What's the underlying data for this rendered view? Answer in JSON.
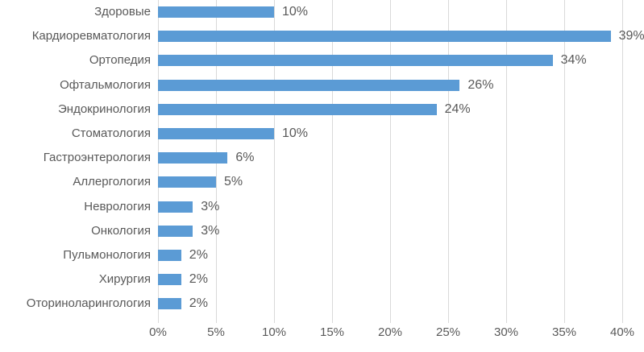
{
  "chart_data": {
    "type": "bar",
    "orientation": "horizontal",
    "title": "",
    "xlabel": "",
    "ylabel": "",
    "categories": [
      "Здоровые",
      "Кардиоревматология",
      "Ортопедия",
      "Офтальмология",
      "Эндокринология",
      "Стоматология",
      "Гастроэнтерология",
      "Аллергология",
      "Неврология",
      "Онкология",
      "Пульмонология",
      "Хирургия",
      "Оториноларингология"
    ],
    "values": [
      10,
      39,
      34,
      26,
      24,
      10,
      6,
      5,
      3,
      3,
      2,
      2,
      2
    ],
    "value_labels": [
      "10%",
      "39%",
      "34%",
      "26%",
      "24%",
      "10%",
      "6%",
      "5%",
      "3%",
      "3%",
      "2%",
      "2%",
      "2%"
    ],
    "x_ticks": [
      "0%",
      "5%",
      "10%",
      "15%",
      "20%",
      "25%",
      "30%",
      "35%",
      "40%"
    ],
    "x_tick_values": [
      0,
      5,
      10,
      15,
      20,
      25,
      30,
      35,
      40
    ],
    "xlim": [
      0,
      40
    ],
    "grid": true,
    "legend_position": "none",
    "colors": {
      "bar": "#5b9bd5",
      "text": "#595959",
      "gridline": "#d9d9d9",
      "background": "#ffffff"
    }
  }
}
